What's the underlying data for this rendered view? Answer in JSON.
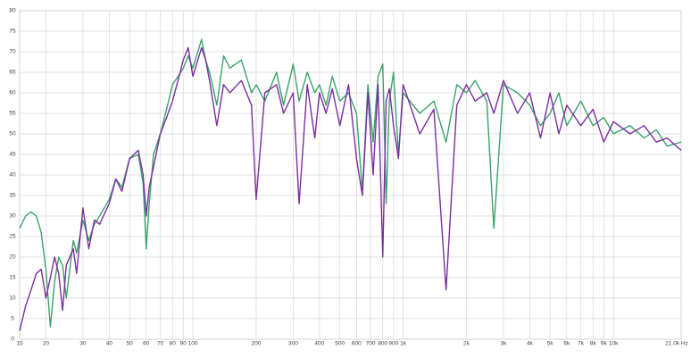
{
  "chart_data": {
    "type": "line",
    "x": [
      15,
      16,
      17,
      18,
      19,
      20,
      21,
      22,
      23,
      24,
      25,
      27,
      28,
      30,
      32,
      34,
      36,
      40,
      43,
      46,
      50,
      55,
      58,
      60,
      62,
      65,
      70,
      75,
      80,
      85,
      90,
      95,
      100,
      110,
      115,
      120,
      130,
      140,
      150,
      170,
      190,
      200,
      220,
      250,
      270,
      300,
      320,
      350,
      380,
      400,
      430,
      460,
      500,
      550,
      600,
      640,
      680,
      720,
      760,
      800,
      830,
      860,
      900,
      950,
      1000,
      1200,
      1400,
      1600,
      1800,
      2000,
      2200,
      2500,
      2700,
      3000,
      3500,
      4000,
      4500,
      5000,
      5500,
      6000,
      7000,
      8000,
      9000,
      10000,
      12000,
      14000,
      16000,
      18000,
      21000
    ],
    "series": [
      {
        "color": "#3aa36b",
        "values": [
          27,
          30,
          31,
          30,
          26,
          17,
          3,
          14,
          20,
          18,
          10,
          24,
          21,
          29,
          24,
          28,
          30,
          34,
          39,
          37,
          44,
          45,
          38,
          22,
          33,
          45,
          50,
          56,
          62,
          64,
          66,
          69,
          66,
          73,
          68,
          65,
          57,
          69,
          66,
          68,
          60,
          62,
          58,
          65,
          57,
          67,
          58,
          65,
          60,
          62,
          57,
          64,
          58,
          60,
          55,
          36,
          62,
          48,
          64,
          67,
          33,
          58,
          65,
          45,
          60,
          55,
          58,
          48,
          62,
          60,
          63,
          58,
          27,
          62,
          60,
          57,
          52,
          55,
          60,
          52,
          58,
          52,
          54,
          50,
          52,
          49,
          51,
          47,
          48
        ]
      },
      {
        "color": "#7b2fa0",
        "values": [
          2,
          8,
          12,
          16,
          17,
          10,
          15,
          20,
          16,
          7,
          18,
          22,
          16,
          32,
          22,
          29,
          28,
          33,
          39,
          36,
          44,
          46,
          40,
          30,
          37,
          42,
          50,
          54,
          58,
          63,
          68,
          71,
          64,
          71,
          68,
          63,
          52,
          62,
          60,
          63,
          57,
          34,
          60,
          62,
          55,
          60,
          33,
          62,
          49,
          60,
          55,
          61,
          52,
          62,
          44,
          35,
          60,
          40,
          62,
          20,
          58,
          61,
          52,
          44,
          62,
          50,
          56,
          12,
          57,
          62,
          58,
          60,
          55,
          63,
          55,
          60,
          49,
          60,
          50,
          57,
          52,
          56,
          48,
          53,
          50,
          52,
          48,
          49,
          46
        ]
      }
    ],
    "xlim": [
      15,
      21000
    ],
    "log_x": true,
    "xticks": [
      15,
      20,
      30,
      40,
      50,
      60,
      70,
      80,
      90,
      100,
      200,
      300,
      400,
      500,
      600,
      700,
      800,
      900,
      {
        "value": 1000,
        "label": "1k"
      },
      {
        "value": 2000,
        "label": "2k"
      },
      {
        "value": 3000,
        "label": "3k"
      },
      {
        "value": 4000,
        "label": "4k"
      },
      {
        "value": 5000,
        "label": "5k"
      },
      {
        "value": 6000,
        "label": "6k"
      },
      {
        "value": 7000,
        "label": "7k"
      },
      {
        "value": 8000,
        "label": "8k"
      },
      {
        "value": 9000,
        "label": "9k"
      },
      {
        "value": 10000,
        "label": "10k"
      },
      {
        "value": 21000,
        "label": "21.0k Hz"
      }
    ],
    "ylim": [
      0,
      80
    ],
    "yticks": [
      0,
      5,
      10,
      15,
      20,
      25,
      30,
      35,
      40,
      45,
      50,
      55,
      60,
      65,
      70,
      75,
      80
    ],
    "grid": true
  }
}
